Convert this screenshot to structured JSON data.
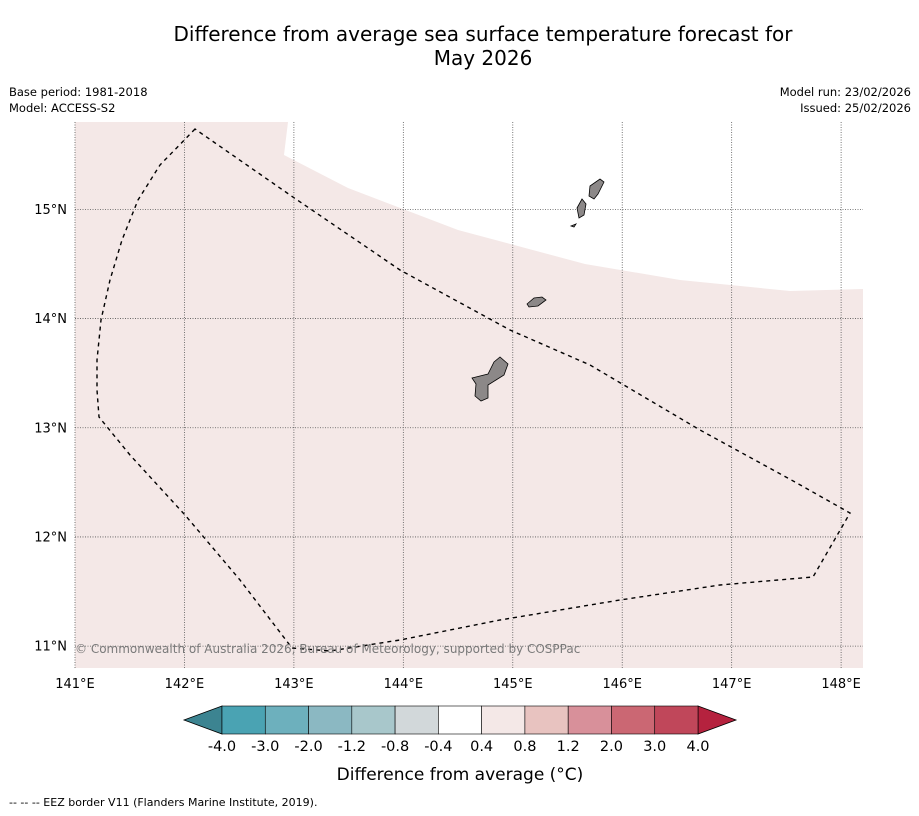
{
  "title": {
    "line1": "Difference from average sea surface temperature forecast for",
    "line2": "May 2026"
  },
  "header": {
    "base_period": "Base period: 1981-2018",
    "model": "Model: ACCESS-S2",
    "model_run": "Model run: 23/02/2026",
    "issued": "Issued: 25/02/2026"
  },
  "map": {
    "lon_ticks": [
      "141°E",
      "142°E",
      "143°E",
      "144°E",
      "145°E",
      "146°E",
      "147°E",
      "148°E"
    ],
    "lat_ticks": [
      "15°N",
      "14°N",
      "13°N",
      "12°N",
      "11°N"
    ],
    "lon_range": [
      141,
      148.2
    ],
    "lat_range": [
      10.8,
      15.8
    ],
    "land_color": "#8c8888",
    "anomaly_fill_color": "#f4e8e7",
    "copyright": "© Commonwealth of Australia 2026, Bureau of Meteorology, supported by COSPPac"
  },
  "colorbar": {
    "tick_labels": [
      "-4.0",
      "-3.0",
      "-2.0",
      "-1.2",
      "-0.8",
      "-0.4",
      "0.4",
      "0.8",
      "1.2",
      "2.0",
      "3.0",
      "4.0"
    ],
    "colors": [
      "#4aa3b3",
      "#6db0bd",
      "#8bb8c2",
      "#a8c7cb",
      "#d2d8da",
      "#ffffff",
      "#f4e8e7",
      "#e8c3c0",
      "#d8909a",
      "#cb6773",
      "#c0475a"
    ],
    "under_color": "#3c8491",
    "over_color": "#b5223e",
    "label": "Difference from average (°C)"
  },
  "footer": {
    "eez_legend": "--  --  -- EEZ border V11 (Flanders Marine Institute, 2019)."
  }
}
